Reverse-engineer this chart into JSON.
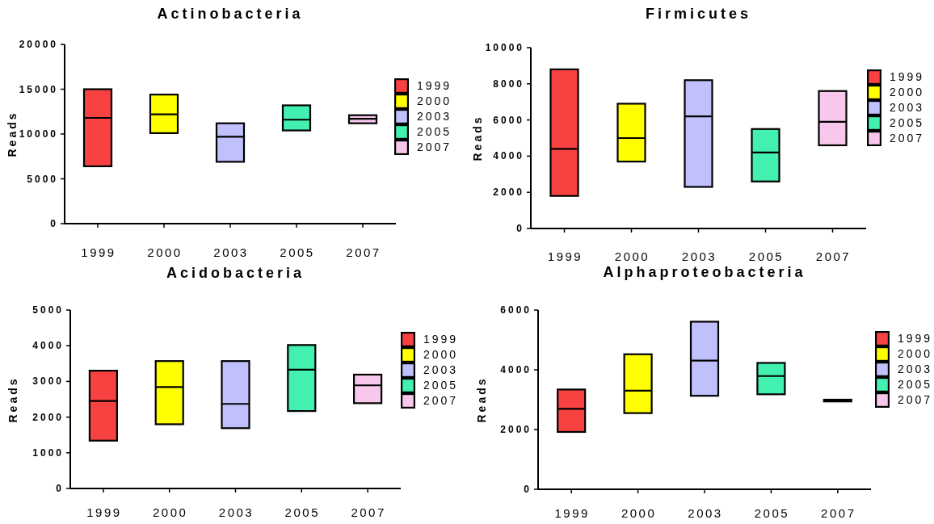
{
  "chart_data": [
    {
      "type": "box",
      "title": "Actinobacteria",
      "ylabel": "Reads",
      "categories": [
        "1999",
        "2000",
        "2003",
        "2005",
        "2007"
      ],
      "series": [
        {
          "name": "1999",
          "color": "#f84242",
          "boxes": [
            {
              "low": 6400,
              "q1": 6400,
              "median": 11800,
              "q3": 15000,
              "high": 15000
            },
            null,
            null,
            null,
            null
          ]
        },
        {
          "name": "2000",
          "color": "#ffff00",
          "boxes": [
            null,
            {
              "low": 10100,
              "q1": 10100,
              "median": 12200,
              "q3": 14400,
              "high": 14400
            },
            null,
            null,
            null
          ]
        },
        {
          "name": "2003",
          "color": "#c0c0fc",
          "boxes": [
            null,
            null,
            {
              "low": 6900,
              "q1": 6900,
              "median": 9700,
              "q3": 11200,
              "high": 11200
            },
            null,
            null
          ]
        },
        {
          "name": "2005",
          "color": "#42f0b0",
          "boxes": [
            null,
            null,
            null,
            {
              "low": 10400,
              "q1": 10400,
              "median": 11600,
              "q3": 13200,
              "high": 13200
            },
            null
          ]
        },
        {
          "name": "2007",
          "color": "#f8c8ec",
          "boxes": [
            null,
            null,
            null,
            null,
            {
              "low": 11200,
              "q1": 11200,
              "median": 11700,
              "q3": 12100,
              "high": 12100
            }
          ]
        }
      ],
      "ylim": [
        0,
        20000
      ],
      "yticks": [
        0,
        5000,
        10000,
        15000,
        20000
      ],
      "legend": "right"
    },
    {
      "type": "box",
      "title": "Firmicutes",
      "ylabel": "Reads",
      "categories": [
        "1999",
        "2000",
        "2003",
        "2005",
        "2007"
      ],
      "series": [
        {
          "name": "1999",
          "color": "#f84242",
          "boxes": [
            {
              "low": 1800,
              "q1": 1800,
              "median": 4400,
              "q3": 8800,
              "high": 8800
            },
            null,
            null,
            null,
            null
          ]
        },
        {
          "name": "2000",
          "color": "#ffff00",
          "boxes": [
            null,
            {
              "low": 3700,
              "q1": 3700,
              "median": 5000,
              "q3": 6900,
              "high": 6900
            },
            null,
            null,
            null
          ]
        },
        {
          "name": "2003",
          "color": "#c0c0fc",
          "boxes": [
            null,
            null,
            {
              "low": 2300,
              "q1": 2300,
              "median": 6200,
              "q3": 8200,
              "high": 8200
            },
            null,
            null
          ]
        },
        {
          "name": "2005",
          "color": "#42f0b0",
          "boxes": [
            null,
            null,
            null,
            {
              "low": 2600,
              "q1": 2600,
              "median": 4200,
              "q3": 5500,
              "high": 5500
            },
            null
          ]
        },
        {
          "name": "2007",
          "color": "#f8c8ec",
          "boxes": [
            null,
            null,
            null,
            null,
            {
              "low": 4600,
              "q1": 4600,
              "median": 5900,
              "q3": 7600,
              "high": 7600
            }
          ]
        }
      ],
      "ylim": [
        0,
        10000
      ],
      "yticks": [
        0,
        2000,
        4000,
        6000,
        8000,
        10000
      ],
      "legend": "right"
    },
    {
      "type": "box",
      "title": "Acidobacteria",
      "ylabel": "Reads",
      "categories": [
        "1999",
        "2000",
        "2003",
        "2005",
        "2007"
      ],
      "series": [
        {
          "name": "1999",
          "color": "#f84242",
          "boxes": [
            {
              "low": 1340,
              "q1": 1340,
              "median": 2450,
              "q3": 3300,
              "high": 3300
            },
            null,
            null,
            null,
            null
          ]
        },
        {
          "name": "2000",
          "color": "#ffff00",
          "boxes": [
            null,
            {
              "low": 1800,
              "q1": 1800,
              "median": 2840,
              "q3": 3570,
              "high": 3570
            },
            null,
            null,
            null
          ]
        },
        {
          "name": "2003",
          "color": "#c0c0fc",
          "boxes": [
            null,
            null,
            {
              "low": 1690,
              "q1": 1690,
              "median": 2370,
              "q3": 3570,
              "high": 3570
            },
            null,
            null
          ]
        },
        {
          "name": "2005",
          "color": "#42f0b0",
          "boxes": [
            null,
            null,
            null,
            {
              "low": 2170,
              "q1": 2170,
              "median": 3330,
              "q3": 4020,
              "high": 4020
            },
            null
          ]
        },
        {
          "name": "2007",
          "color": "#f8c8ec",
          "boxes": [
            null,
            null,
            null,
            null,
            {
              "low": 2390,
              "q1": 2390,
              "median": 2890,
              "q3": 3190,
              "high": 3190
            }
          ]
        }
      ],
      "ylim": [
        0,
        5000
      ],
      "yticks": [
        0,
        1000,
        2000,
        3000,
        4000,
        5000
      ],
      "legend": "right"
    },
    {
      "type": "box",
      "title": "Alphaproteobacteria",
      "ylabel": "Reads",
      "categories": [
        "1999",
        "2000",
        "2003",
        "2005",
        "2007"
      ],
      "series": [
        {
          "name": "1999",
          "color": "#f84242",
          "boxes": [
            {
              "low": 1920,
              "q1": 1920,
              "median": 2690,
              "q3": 3340,
              "high": 3340
            },
            null,
            null,
            null,
            null
          ]
        },
        {
          "name": "2000",
          "color": "#ffff00",
          "boxes": [
            null,
            {
              "low": 2550,
              "q1": 2550,
              "median": 3300,
              "q3": 4520,
              "high": 4520
            },
            null,
            null,
            null
          ]
        },
        {
          "name": "2003",
          "color": "#c0c0fc",
          "boxes": [
            null,
            null,
            {
              "low": 3130,
              "q1": 3130,
              "median": 4310,
              "q3": 5610,
              "high": 5610
            },
            null,
            null
          ]
        },
        {
          "name": "2005",
          "color": "#42f0b0",
          "boxes": [
            null,
            null,
            null,
            {
              "low": 3180,
              "q1": 3180,
              "median": 3790,
              "q3": 4230,
              "high": 4230
            },
            null
          ]
        },
        {
          "name": "2007",
          "color": "#f8c8ec",
          "boxes": [
            null,
            null,
            null,
            null,
            {
              "low": 2940,
              "q1": 2940,
              "median": 2970,
              "q3": 3000,
              "high": 3000
            }
          ]
        }
      ],
      "ylim": [
        0,
        6000
      ],
      "yticks": [
        0,
        2000,
        4000,
        6000
      ],
      "legend": "right"
    }
  ]
}
